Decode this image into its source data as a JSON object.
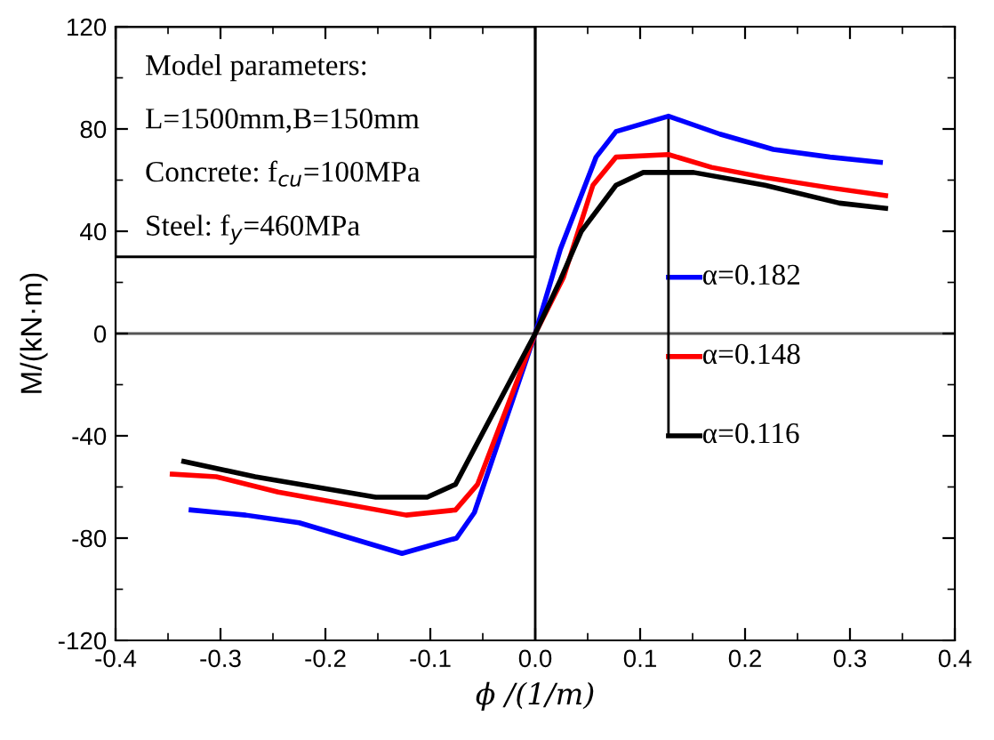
{
  "chart_data": {
    "type": "line",
    "xlabel": "ϕ /(1/m)",
    "ylabel": "M/(kN·m)",
    "xlim": [
      -0.4,
      0.4
    ],
    "xticks": [
      -0.4,
      -0.3,
      -0.2,
      -0.1,
      {
        "value": 0,
        "label": "0.0"
      },
      0.1,
      0.2,
      0.3,
      0.4
    ],
    "ylim": [
      -120,
      120
    ],
    "yticks": [
      -120,
      -80,
      -40,
      0,
      40,
      80,
      120
    ],
    "grid": false,
    "legend": "right",
    "marker": "none",
    "line_style": "solid",
    "ref_lines": [
      {
        "axis": "x",
        "value": 0,
        "color": "#000000"
      },
      {
        "axis": "y",
        "value": 0,
        "color": "#555555"
      }
    ],
    "annotations": [
      "Model parameters:",
      "L=1500mm,B=150mm",
      "Concrete: f$_{cu}$=100MPa",
      "Steel: f$_{y}$=460MPa"
    ],
    "series": [
      {
        "name": "α=0.182",
        "color": "#0000ff",
        "x": [
          -0.328,
          -0.276,
          -0.225,
          -0.127,
          -0.075,
          -0.058,
          0,
          0.024,
          0.058,
          0.077,
          0.127,
          0.176,
          0.227,
          0.281,
          0.329
        ],
        "values": [
          -69,
          -71,
          -74,
          -86,
          -80,
          -70,
          0,
          33,
          69,
          79,
          85,
          78,
          72,
          69,
          67
        ]
      },
      {
        "name": "α=0.148",
        "color": "#ff0000",
        "x": [
          -0.346,
          -0.304,
          -0.245,
          -0.123,
          -0.076,
          -0.055,
          0,
          0.027,
          0.055,
          0.077,
          0.127,
          0.168,
          0.219,
          0.281,
          0.334
        ],
        "values": [
          -55,
          -56,
          -62,
          -71,
          -69,
          -59,
          0,
          22,
          58,
          69,
          70,
          65,
          61,
          57,
          54
        ]
      },
      {
        "name": "α=0.116",
        "color": "#000000",
        "x": [
          -0.335,
          -0.267,
          -0.152,
          -0.103,
          -0.076,
          -0.058,
          0,
          0.024,
          0.044,
          0.077,
          0.103,
          0.151,
          0.219,
          0.29,
          0.334
        ],
        "values": [
          -50,
          -56,
          -64,
          -64,
          -59,
          -45,
          0,
          21,
          40,
          58,
          63,
          63,
          58,
          51,
          49
        ]
      }
    ]
  }
}
